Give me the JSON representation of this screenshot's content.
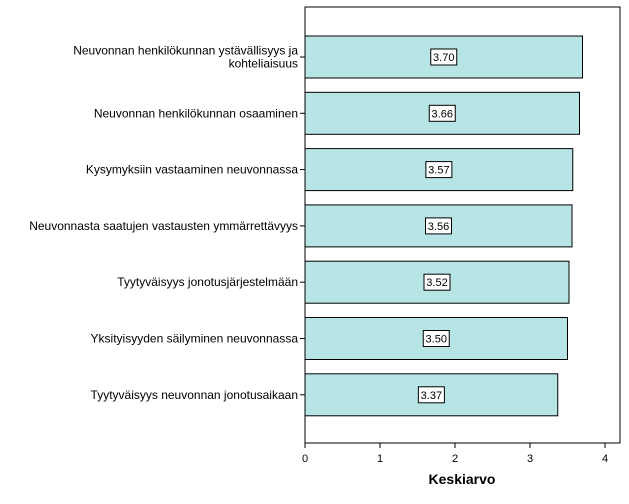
{
  "chart_data": {
    "type": "bar",
    "orientation": "horizontal",
    "categories": [
      [
        "Neuvonnan henkilökunnan ystävällisyys ja",
        "kohteliaisuus"
      ],
      [
        "Neuvonnan henkilökunnan osaaminen"
      ],
      [
        "Kysymyksiin vastaaminen neuvonnassa"
      ],
      [
        "Neuvonnasta saatujen vastausten ymmärrettävyys"
      ],
      [
        "Tyytyväisyys jonotusjärjestelmään"
      ],
      [
        "Yksityisyyden säilyminen neuvonnassa"
      ],
      [
        "Tyytyväisyys neuvonnan jonotusaikaan"
      ]
    ],
    "values": [
      3.7,
      3.66,
      3.57,
      3.56,
      3.52,
      3.5,
      3.37
    ],
    "value_labels": [
      "3.70",
      "3.66",
      "3.57",
      "3.56",
      "3.52",
      "3.50",
      "3.37"
    ],
    "xlabel": "Keskiarvo",
    "xlim": [
      0,
      4.2
    ],
    "xticks": [
      0,
      1,
      2,
      3,
      4
    ],
    "bar_color": "#b7e5e6",
    "bar_stroke": "#000000",
    "grid": false,
    "legend": "none"
  }
}
